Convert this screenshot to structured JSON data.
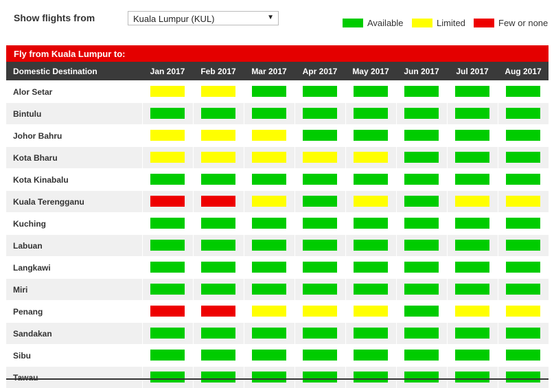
{
  "filter": {
    "label": "Show flights from",
    "selected_origin": "Kuala Lumpur (KUL)"
  },
  "legend": [
    {
      "label": "Available",
      "color": "#00cc00"
    },
    {
      "label": "Limited",
      "color": "#ffff00"
    },
    {
      "label": "Few or none",
      "color": "#ee0000"
    }
  ],
  "banner": {
    "title": "Fly from Kuala Lumpur to:"
  },
  "table": {
    "destination_header": "Domestic Destination",
    "months": [
      "Jan 2017",
      "Feb 2017",
      "Mar 2017",
      "Apr 2017",
      "May 2017",
      "Jun 2017",
      "Jul 2017",
      "Aug 2017"
    ],
    "rows": [
      {
        "destination": "Alor Setar",
        "status": [
          "limited",
          "limited",
          "available",
          "available",
          "available",
          "available",
          "available",
          "available"
        ]
      },
      {
        "destination": "Bintulu",
        "status": [
          "available",
          "available",
          "available",
          "available",
          "available",
          "available",
          "available",
          "available"
        ]
      },
      {
        "destination": "Johor Bahru",
        "status": [
          "limited",
          "limited",
          "limited",
          "available",
          "available",
          "available",
          "available",
          "available"
        ]
      },
      {
        "destination": "Kota Bharu",
        "status": [
          "limited",
          "limited",
          "limited",
          "limited",
          "limited",
          "available",
          "available",
          "available"
        ]
      },
      {
        "destination": "Kota Kinabalu",
        "status": [
          "available",
          "available",
          "available",
          "available",
          "available",
          "available",
          "available",
          "available"
        ]
      },
      {
        "destination": "Kuala Terengganu",
        "status": [
          "few",
          "few",
          "limited",
          "available",
          "limited",
          "available",
          "limited",
          "limited"
        ]
      },
      {
        "destination": "Kuching",
        "status": [
          "available",
          "available",
          "available",
          "available",
          "available",
          "available",
          "available",
          "available"
        ]
      },
      {
        "destination": "Labuan",
        "status": [
          "available",
          "available",
          "available",
          "available",
          "available",
          "available",
          "available",
          "available"
        ]
      },
      {
        "destination": "Langkawi",
        "status": [
          "available",
          "available",
          "available",
          "available",
          "available",
          "available",
          "available",
          "available"
        ]
      },
      {
        "destination": "Miri",
        "status": [
          "available",
          "available",
          "available",
          "available",
          "available",
          "available",
          "available",
          "available"
        ]
      },
      {
        "destination": "Penang",
        "status": [
          "few",
          "few",
          "limited",
          "limited",
          "limited",
          "available",
          "limited",
          "limited"
        ]
      },
      {
        "destination": "Sandakan",
        "status": [
          "available",
          "available",
          "available",
          "available",
          "available",
          "available",
          "available",
          "available"
        ]
      },
      {
        "destination": "Sibu",
        "status": [
          "available",
          "available",
          "available",
          "available",
          "available",
          "available",
          "available",
          "available"
        ]
      },
      {
        "destination": "Tawau",
        "status": [
          "available",
          "available",
          "available",
          "available",
          "available",
          "available",
          "available",
          "available"
        ]
      }
    ]
  }
}
